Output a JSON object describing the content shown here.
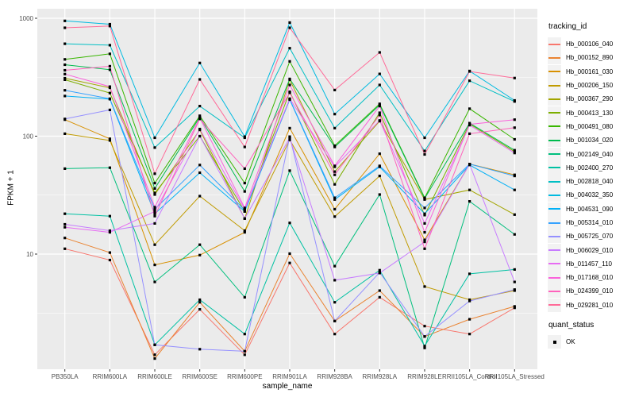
{
  "legend": {
    "tracking_title": "tracking_id",
    "quant_title": "quant_status",
    "quant_value": "OK"
  },
  "chart_data": {
    "type": "line",
    "title": "",
    "xlabel": "sample_name",
    "ylabel": "FPKM + 1",
    "y_scale": "log10",
    "ylim": [
      1.05,
      1200
    ],
    "y_ticks": [
      10,
      100,
      1000
    ],
    "y_minor_ticks": [
      3.162,
      31.62,
      316.23
    ],
    "grid": "on",
    "legend_position": "right",
    "point_color": "#000000",
    "panel_bg": "#EBEBEB",
    "categories": [
      "PB350LA",
      "RRIM600LA",
      "RRIM600LE",
      "RRIM600SE",
      "RRIM600PE",
      "RRIM901LA",
      "RRIM928BA",
      "RRIM928LA",
      "RRIM928LE",
      "RRII105LA_Control",
      "RRII105LA_Stressed"
    ],
    "series": [
      {
        "name": "Hb_000106_040",
        "color": "#F8766D",
        "quant_status": "OK",
        "values": [
          11.1,
          8.9,
          1.4,
          3.4,
          1.4,
          8.4,
          2.1,
          4.3,
          2.45,
          2.1,
          3.5
        ]
      },
      {
        "name": "Hb_000152_890",
        "color": "#EA8331",
        "quant_status": "OK",
        "values": [
          13.7,
          10.3,
          1.3,
          3.9,
          1.5,
          10.1,
          2.7,
          4.9,
          2.0,
          2.8,
          3.6
        ]
      },
      {
        "name": "Hb_000161_030",
        "color": "#D89000",
        "quant_status": "OK",
        "values": [
          138,
          95,
          8.1,
          9.8,
          15.3,
          117,
          24,
          71,
          13.2,
          58,
          47
        ]
      },
      {
        "name": "Hb_000206_150",
        "color": "#C09B00",
        "quant_status": "OK",
        "values": [
          105,
          92,
          12,
          31,
          15.8,
          93,
          20.8,
          46,
          5.3,
          4.1,
          4.9
        ]
      },
      {
        "name": "Hb_000367_290",
        "color": "#A3A500",
        "quant_status": "OK",
        "values": [
          310,
          257,
          32,
          113,
          20,
          301,
          50,
          134,
          29,
          35,
          21.6
        ]
      },
      {
        "name": "Hb_000413_130",
        "color": "#7CAE00",
        "quant_status": "OK",
        "values": [
          301,
          232,
          33,
          100,
          23,
          238,
          39,
          158,
          21.4,
          127,
          74
        ]
      },
      {
        "name": "Hb_000491_080",
        "color": "#39B600",
        "quant_status": "OK",
        "values": [
          448,
          499,
          40,
          149,
          40,
          431,
          83,
          188,
          30,
          171,
          94
        ]
      },
      {
        "name": "Hb_001034_020",
        "color": "#00BB4E",
        "quant_status": "OK",
        "values": [
          404,
          366,
          36,
          145,
          34,
          306,
          81,
          184,
          29.6,
          129,
          76
        ]
      },
      {
        "name": "Hb_002149_040",
        "color": "#00BF7D",
        "quant_status": "OK",
        "values": [
          53,
          54,
          5.8,
          12,
          4.3,
          51,
          7.9,
          32,
          1.6,
          28,
          14.7
        ]
      },
      {
        "name": "Hb_002400_270",
        "color": "#00C1A3",
        "quant_status": "OK",
        "values": [
          22,
          21,
          1.7,
          4.1,
          2.1,
          18.4,
          3.9,
          7.3,
          1.66,
          6.8,
          7.4
        ]
      },
      {
        "name": "Hb_002818_040",
        "color": "#00BFC4",
        "quant_status": "OK",
        "values": [
          608,
          591,
          80,
          180,
          97,
          557,
          117,
          272,
          75,
          295,
          197
        ]
      },
      {
        "name": "Hb_004032_350",
        "color": "#00BAE0",
        "quant_status": "OK",
        "values": [
          950,
          890,
          97,
          418,
          99,
          920,
          154,
          337,
          97,
          357,
          201
        ]
      },
      {
        "name": "Hb_004531_090",
        "color": "#00B0F6",
        "quant_status": "OK",
        "values": [
          219,
          206,
          22,
          49,
          23,
          204,
          29,
          55,
          22,
          57,
          35
        ]
      },
      {
        "name": "Hb_005314_010",
        "color": "#35A2FF",
        "quant_status": "OK",
        "values": [
          245,
          208,
          24,
          57,
          23.6,
          206,
          30,
          56,
          24.6,
          58,
          46
        ]
      },
      {
        "name": "Hb_005725_070",
        "color": "#9590FF",
        "quant_status": "OK",
        "values": [
          140,
          167,
          1.7,
          1.56,
          1.5,
          99,
          2.7,
          7.0,
          2.0,
          4.0,
          5.0
        ]
      },
      {
        "name": "Hb_006029_010",
        "color": "#C77CFF",
        "quant_status": "OK",
        "values": [
          17.9,
          15.8,
          18.2,
          100,
          20,
          97,
          6.0,
          6.9,
          12.7,
          58,
          5.8
        ]
      },
      {
        "name": "Hb_011457_110",
        "color": "#E76BF3",
        "quant_status": "OK",
        "values": [
          16.9,
          15.3,
          23,
          115,
          24,
          208,
          55,
          136,
          18.2,
          124,
          72
        ]
      },
      {
        "name": "Hb_017168_010",
        "color": "#FA62DB",
        "quant_status": "OK",
        "values": [
          336,
          263,
          25,
          143,
          24.6,
          272,
          56,
          180,
          15.3,
          126,
          138
        ]
      },
      {
        "name": "Hb_024399_010",
        "color": "#FF62BC",
        "quant_status": "OK",
        "values": [
          362,
          392,
          21,
          140,
          53,
          233,
          47,
          151,
          11.1,
          105,
          118
        ]
      },
      {
        "name": "Hb_029281_010",
        "color": "#FF6A98",
        "quant_status": "OK",
        "values": [
          830,
          859,
          48,
          303,
          81,
          830,
          246,
          513,
          70,
          354,
          311
        ]
      }
    ]
  }
}
